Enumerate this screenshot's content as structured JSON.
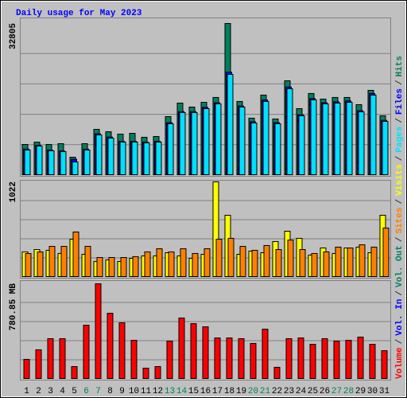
{
  "title": "Daily usage for May 2023",
  "legend_separator": "/",
  "chart_data": [
    {
      "type": "bar",
      "ylim": [
        0,
        32805
      ],
      "yticks": [
        32805
      ],
      "series": [
        {
          "name": "Hits",
          "color": "#00805c",
          "values": [
            6700,
            7200,
            6700,
            6870,
            3950,
            6870,
            9960,
            9450,
            8930,
            9100,
            8250,
            8420,
            12710,
            15630,
            14770,
            15800,
            16840,
            32805,
            15980,
            12370,
            17350,
            12200,
            20440,
            14430,
            17700,
            16490,
            16840,
            16840,
            15290,
            18380,
            12890
          ]
        },
        {
          "name": "Files",
          "color": "#0000ff",
          "values": [
            5700,
            6500,
            5500,
            5300,
            3500,
            5700,
            9000,
            8300,
            7400,
            7400,
            7200,
            7400,
            11400,
            13800,
            13800,
            14700,
            15700,
            22300,
            15000,
            11600,
            16300,
            11400,
            19100,
            13100,
            16600,
            15700,
            15900,
            16100,
            14000,
            17700,
            11900
          ]
        },
        {
          "name": "Pages",
          "color": "#00e0ff",
          "values": [
            5500,
            6360,
            5330,
            5150,
            2920,
            5500,
            8760,
            8070,
            7210,
            7210,
            7040,
            7210,
            11170,
            13570,
            13570,
            14430,
            15460,
            21820,
            14770,
            11340,
            15980,
            11170,
            18730,
            12890,
            16320,
            15460,
            15630,
            15800,
            13740,
            17350,
            11680
          ]
        }
      ]
    },
    {
      "type": "bar",
      "ylim": [
        0,
        1022
      ],
      "yticks": [
        1022
      ],
      "series": [
        {
          "name": "Visits",
          "color": "#ffff00",
          "values": [
            273,
            298,
            290,
            256,
            409,
            247,
            170,
            187,
            170,
            204,
            230,
            230,
            264,
            230,
            204,
            247,
            1022,
            665,
            247,
            281,
            264,
            383,
            494,
            418,
            239,
            315,
            256,
            315,
            324,
            264,
            665
          ]
        },
        {
          "name": "Sites",
          "color": "#ff8000",
          "values": [
            256,
            273,
            332,
            332,
            486,
            332,
            213,
            213,
            213,
            222,
            273,
            307,
            273,
            307,
            256,
            307,
            409,
            418,
            332,
            290,
            341,
            298,
            400,
            298,
            256,
            273,
            324,
            315,
            349,
            324,
            528
          ]
        }
      ]
    },
    {
      "type": "bar",
      "ylim": [
        0,
        780.85
      ],
      "yticks": [
        {
          "value": 780.85,
          "label": "780.85 MB"
        }
      ],
      "categories": [
        "1",
        "2",
        "3",
        "4",
        "5",
        "6",
        "7",
        "8",
        "9",
        "10",
        "11",
        "12",
        "13",
        "14",
        "15",
        "16",
        "17",
        "18",
        "19",
        "20",
        "21",
        "22",
        "23",
        "24",
        "25",
        "26",
        "27",
        "28",
        "29",
        "30",
        "31"
      ],
      "category_colors": [
        "#000000",
        "#000000",
        "#000000",
        "#000000",
        "#000000",
        "#00805c",
        "#00805c",
        "#000000",
        "#000000",
        "#000000",
        "#000000",
        "#000000",
        "#00805c",
        "#00805c",
        "#000000",
        "#000000",
        "#000000",
        "#000000",
        "#000000",
        "#00805c",
        "#00805c",
        "#000000",
        "#000000",
        "#000000",
        "#000000",
        "#000000",
        "#00805c",
        "#00805c",
        "#000000",
        "#000000",
        "#000000"
      ],
      "series": [
        {
          "name": "Vol. Out",
          "color": "#00805c",
          "values": [
            0,
            0,
            0,
            0,
            0,
            0,
            0,
            0,
            0,
            0,
            0,
            0,
            0,
            0,
            0,
            0,
            0,
            0,
            0,
            0,
            0,
            0,
            0,
            0,
            0,
            0,
            0,
            0,
            0,
            0,
            0
          ]
        },
        {
          "name": "Vol. In",
          "color": "#0000ff",
          "values": [
            0,
            0,
            0,
            0,
            0,
            0,
            0,
            0,
            0,
            0,
            0,
            0,
            0,
            0,
            0,
            0,
            0,
            0,
            0,
            0,
            0,
            0,
            0,
            0,
            0,
            0,
            0,
            0,
            0,
            0,
            0
          ]
        },
        {
          "name": "Volume",
          "color": "#ff0000",
          "values": [
            163,
            241,
            332,
            332,
            104,
            442,
            780.85,
            540,
            462,
            319,
            91,
            104,
            312,
            501,
            455,
            429,
            338,
            338,
            332,
            293,
            410,
            98,
            332,
            338,
            286,
            332,
            312,
            319,
            345,
            286,
            234
          ]
        }
      ]
    }
  ]
}
